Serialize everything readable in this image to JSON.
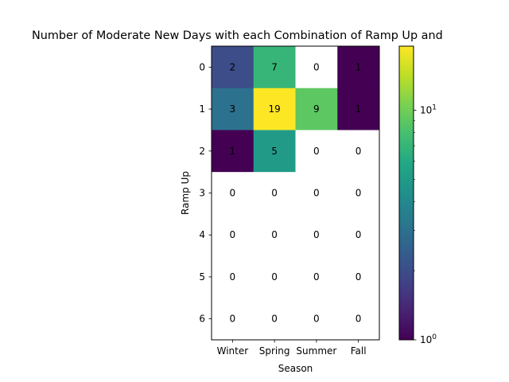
{
  "chart_data": {
    "type": "heatmap",
    "title": "Number of Moderate New Days with each Combination of Ramp Up and",
    "xlabel": "Season",
    "ylabel": "Ramp Up",
    "x_categories": [
      "Winter",
      "Spring",
      "Summer",
      "Fall"
    ],
    "y_categories": [
      "0",
      "1",
      "2",
      "3",
      "4",
      "5",
      "6"
    ],
    "values": [
      [
        2,
        7,
        0,
        1
      ],
      [
        3,
        19,
        9,
        1
      ],
      [
        1,
        5,
        0,
        0
      ],
      [
        0,
        0,
        0,
        0
      ],
      [
        0,
        0,
        0,
        0
      ],
      [
        0,
        0,
        0,
        0
      ],
      [
        0,
        0,
        0,
        0
      ]
    ],
    "colorbar": {
      "scale": "log",
      "vmin": 1,
      "vmax": 19,
      "tick_labels": [
        "10^0",
        "10^1"
      ],
      "colormap": "viridis",
      "zero_color": "#ffffff"
    }
  }
}
